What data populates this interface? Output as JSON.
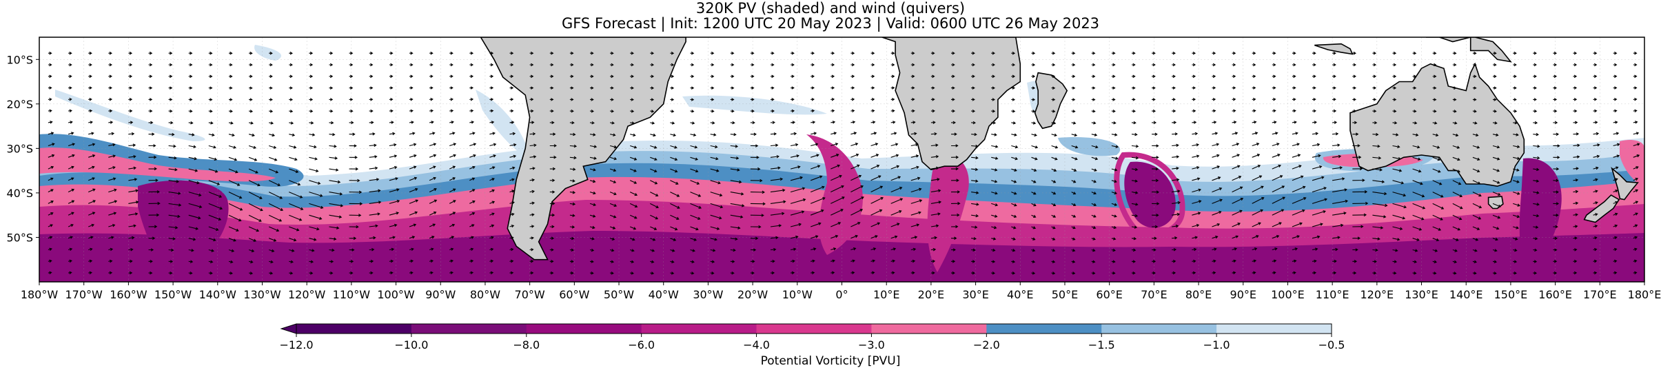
{
  "title": "320K PV (shaded) and wind (quivers)",
  "subtitle": "GFS Forecast | Init: 1200 UTC 20 May 2023 | Valid: 0600 UTC 26 May 2023",
  "map": {
    "lon_range": [
      -180,
      180
    ],
    "lat_range": [
      -60,
      -5
    ],
    "lon_ticks": [
      "180°W",
      "170°W",
      "160°W",
      "150°W",
      "140°W",
      "130°W",
      "120°W",
      "110°W",
      "100°W",
      "90°W",
      "80°W",
      "70°W",
      "60°W",
      "50°W",
      "40°W",
      "30°W",
      "20°W",
      "10°W",
      "0°",
      "10°E",
      "20°E",
      "30°E",
      "40°E",
      "50°E",
      "60°E",
      "70°E",
      "80°E",
      "90°E",
      "100°E",
      "110°E",
      "120°E",
      "130°E",
      "140°E",
      "150°E",
      "160°E",
      "170°E",
      "180°E"
    ],
    "lat_ticks": [
      {
        "lat": -10,
        "label": "10°S"
      },
      {
        "lat": -20,
        "label": "20°S"
      },
      {
        "lat": -30,
        "label": "30°S"
      },
      {
        "lat": -40,
        "label": "40°S"
      },
      {
        "lat": -50,
        "label": "50°S"
      }
    ],
    "land_color": "#cccccc"
  },
  "colorbar": {
    "label": "Potential Vorticity [PVU]",
    "ticks": [
      "−12.0",
      "−10.0",
      "−8.0",
      "−6.0",
      "−4.0",
      "−3.0",
      "−2.0",
      "−1.5",
      "−1.0",
      "−0.5"
    ],
    "colors": [
      "#4d0066",
      "#7a0d78",
      "#970b7e",
      "#b81c88",
      "#d9388e",
      "#ef6a9e",
      "#4d8fc4",
      "#97c1e1",
      "#d2e4f2"
    ],
    "extend": "min"
  },
  "colors": {
    "pv_dark": "#8a0a7c",
    "pv_mid": "#c42a8c",
    "pv_light": "#ee6aa0",
    "pv_blue": "#4d8fc4",
    "pv_lightblue": "#97c1e1",
    "pv_paleblue": "#d2e4f2"
  }
}
